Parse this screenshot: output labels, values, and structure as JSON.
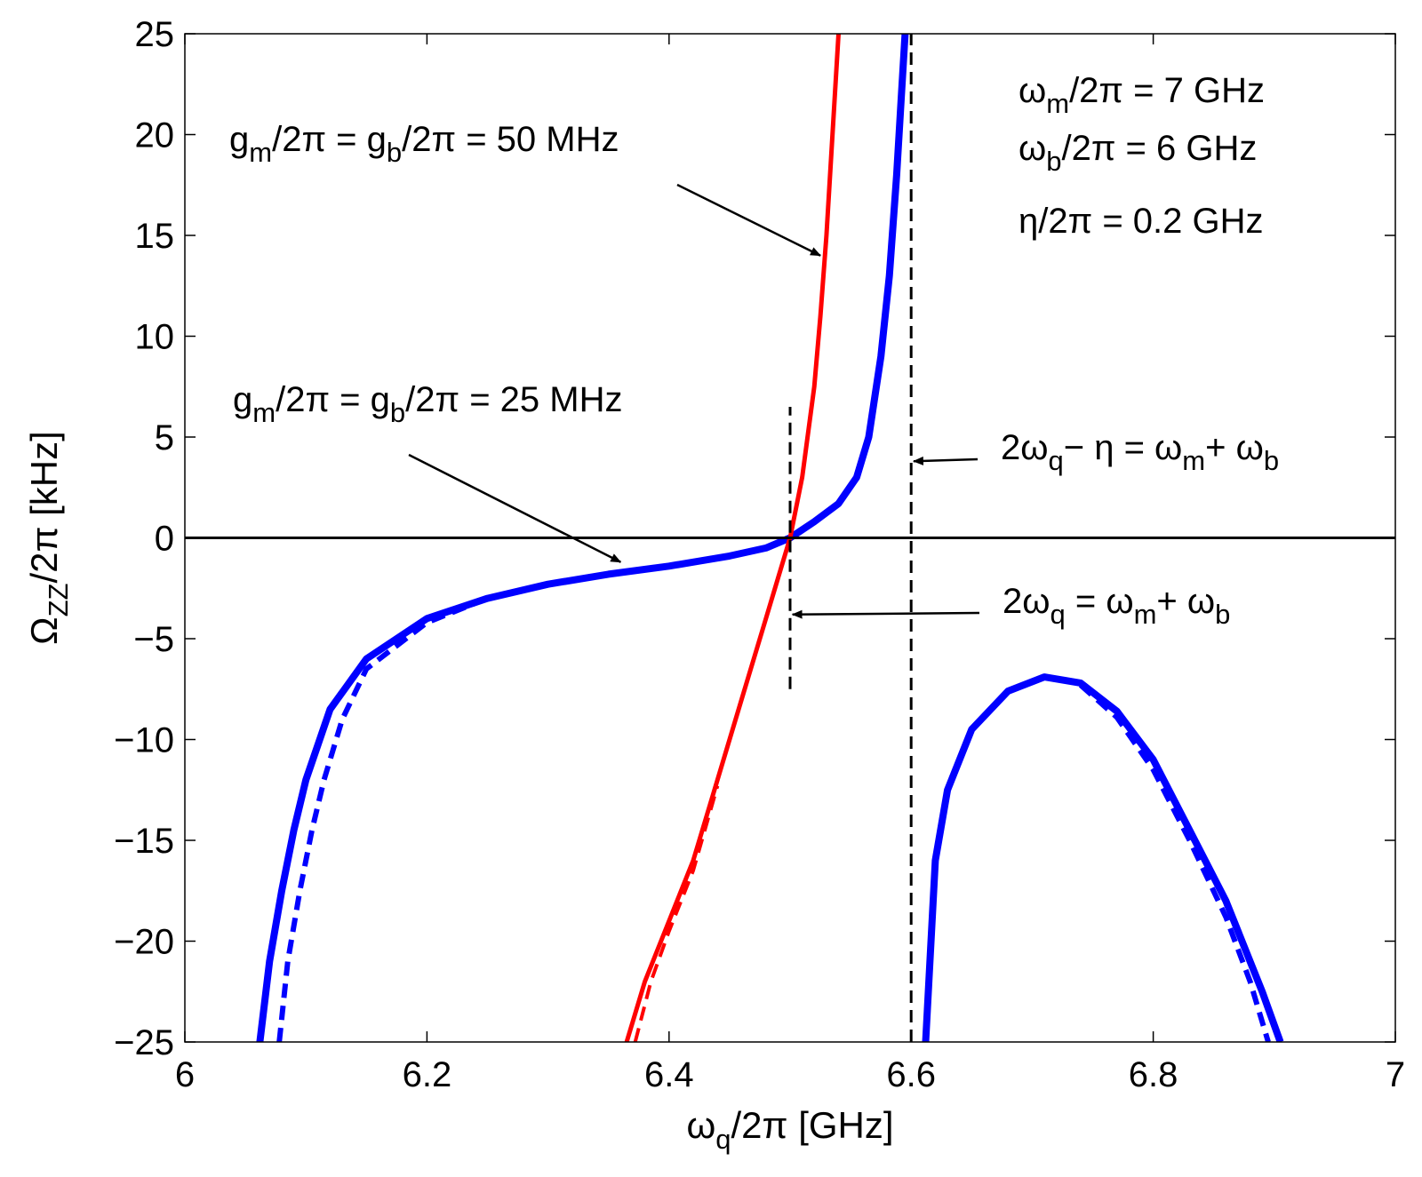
{
  "chart_data": {
    "type": "line",
    "title": "",
    "xlabel": {
      "sym": "ω",
      "sub": "q",
      "rest": "/2π [GHz]"
    },
    "ylabel": {
      "sym": "Ω",
      "sub": "ZZ",
      "rest": "/2π [kHz]"
    },
    "xlim": [
      6,
      7
    ],
    "ylim": [
      -25,
      25
    ],
    "xticks": [
      6,
      6.2,
      6.4,
      6.6,
      6.8,
      7
    ],
    "xtick_labels": [
      "6",
      "6.2",
      "6.4",
      "6.6",
      "6.8",
      "7"
    ],
    "yticks": [
      -25,
      -20,
      -15,
      -10,
      -5,
      0,
      5,
      10,
      15,
      20,
      25
    ],
    "ytick_labels": [
      "−25",
      "−20",
      "−15",
      "−10",
      "−5",
      "0",
      "5",
      "10",
      "15",
      "20",
      "25"
    ],
    "grid": false,
    "series": [
      {
        "name": "g = 25 MHz (solid, blue)",
        "color": "#0000ff",
        "style": "solid",
        "segments": [
          [
            [
              6.062,
              -25
            ],
            [
              6.07,
              -21
            ],
            [
              6.08,
              -17.5
            ],
            [
              6.09,
              -14.5
            ],
            [
              6.1,
              -12
            ],
            [
              6.12,
              -8.5
            ],
            [
              6.15,
              -6
            ],
            [
              6.2,
              -4
            ],
            [
              6.25,
              -3
            ],
            [
              6.3,
              -2.3
            ],
            [
              6.35,
              -1.8
            ],
            [
              6.4,
              -1.4
            ],
            [
              6.45,
              -0.9
            ],
            [
              6.48,
              -0.5
            ],
            [
              6.5,
              0
            ],
            [
              6.52,
              0.8
            ],
            [
              6.54,
              1.7
            ],
            [
              6.555,
              3
            ],
            [
              6.565,
              5
            ],
            [
              6.575,
              9
            ],
            [
              6.582,
              13
            ],
            [
              6.588,
              18
            ],
            [
              6.592,
              22
            ],
            [
              6.595,
              25
            ]
          ],
          [
            [
              6.612,
              -25
            ],
            [
              6.62,
              -16
            ],
            [
              6.63,
              -12.5
            ],
            [
              6.65,
              -9.5
            ],
            [
              6.68,
              -7.6
            ],
            [
              6.71,
              -6.9
            ],
            [
              6.74,
              -7.2
            ],
            [
              6.77,
              -8.6
            ],
            [
              6.8,
              -11
            ],
            [
              6.83,
              -14.5
            ],
            [
              6.86,
              -18
            ],
            [
              6.89,
              -22.5
            ],
            [
              6.905,
              -25
            ]
          ]
        ]
      },
      {
        "name": "g = 25 MHz (dashed, blue)",
        "color": "#0000ff",
        "style": "dashed",
        "segments": [
          [
            [
              6.078,
              -25
            ],
            [
              6.085,
              -21
            ],
            [
              6.095,
              -17.5
            ],
            [
              6.105,
              -14.5
            ],
            [
              6.115,
              -12
            ],
            [
              6.13,
              -9
            ],
            [
              6.15,
              -6.5
            ],
            [
              6.2,
              -4.2
            ],
            [
              6.25,
              -3
            ],
            [
              6.3,
              -2.3
            ],
            [
              6.35,
              -1.8
            ],
            [
              6.4,
              -1.4
            ],
            [
              6.45,
              -0.9
            ],
            [
              6.48,
              -0.5
            ],
            [
              6.5,
              0
            ]
          ],
          [
            [
              6.74,
              -7.3
            ],
            [
              6.77,
              -8.9
            ],
            [
              6.8,
              -11.5
            ],
            [
              6.83,
              -15
            ],
            [
              6.86,
              -18.8
            ],
            [
              6.88,
              -22
            ],
            [
              6.895,
              -25
            ]
          ]
        ]
      },
      {
        "name": "g = 50 MHz (solid, red)",
        "color": "#ff0000",
        "style": "solid",
        "segments": [
          [
            [
              6.365,
              -25
            ],
            [
              6.38,
              -22
            ],
            [
              6.4,
              -19
            ],
            [
              6.42,
              -16
            ],
            [
              6.44,
              -12
            ],
            [
              6.46,
              -8
            ],
            [
              6.48,
              -4
            ],
            [
              6.49,
              -2
            ],
            [
              6.5,
              0
            ],
            [
              6.51,
              3
            ],
            [
              6.52,
              7.5
            ],
            [
              6.525,
              11
            ],
            [
              6.53,
              15
            ],
            [
              6.535,
              20
            ],
            [
              6.54,
              25
            ]
          ]
        ]
      },
      {
        "name": "g = 50 MHz (dashed, red)",
        "color": "#ff0000",
        "style": "dashed",
        "segments": [
          [
            [
              6.372,
              -25
            ],
            [
              6.385,
              -22
            ],
            [
              6.4,
              -19.5
            ],
            [
              6.42,
              -16.5
            ],
            [
              6.44,
              -12.3
            ]
          ]
        ]
      },
      {
        "name": "reference 2ωq = ωm + ωb",
        "color": "#000000",
        "style": "dashed-vertical",
        "segments": [
          [
            [
              6.5,
              -7.5
            ],
            [
              6.5,
              6.5
            ]
          ]
        ]
      },
      {
        "name": "reference 2ωq − η = ωm + ωb",
        "color": "#000000",
        "style": "dashed-vertical",
        "segments": [
          [
            [
              6.6,
              -25
            ],
            [
              6.6,
              25
            ]
          ]
        ]
      },
      {
        "name": "zero line",
        "color": "#000000",
        "style": "solid-thin",
        "segments": [
          [
            [
              6.0,
              0
            ],
            [
              7.0,
              0
            ]
          ]
        ]
      }
    ],
    "annotations": [
      {
        "id": "g50",
        "parts": [
          [
            "g",
            ""
          ],
          [
            "m",
            "sub"
          ],
          [
            "/2π = g",
            ""
          ],
          [
            "b",
            "sub"
          ],
          [
            "/2π = 50 MHz",
            ""
          ]
        ],
        "arrow_to": [
          6.525,
          14
        ]
      },
      {
        "id": "g25",
        "parts": [
          [
            "g",
            ""
          ],
          [
            "m",
            "sub"
          ],
          [
            "/2π = g",
            ""
          ],
          [
            "b",
            "sub"
          ],
          [
            "/2π = 25 MHz",
            ""
          ]
        ],
        "arrow_to": [
          6.36,
          -1.2
        ]
      },
      {
        "id": "res1",
        "parts": [
          [
            "2ω",
            ""
          ],
          [
            "q",
            "sub"
          ],
          [
            "− η = ω",
            ""
          ],
          [
            "m",
            "sub"
          ],
          [
            "+ ω",
            ""
          ],
          [
            "b",
            "sub"
          ]
        ],
        "arrow_to": [
          6.602,
          3.8
        ]
      },
      {
        "id": "res2",
        "parts": [
          [
            "2ω",
            ""
          ],
          [
            "q",
            "sub"
          ],
          [
            " = ω",
            ""
          ],
          [
            "m",
            "sub"
          ],
          [
            "+ ω",
            ""
          ],
          [
            "b",
            "sub"
          ]
        ],
        "arrow_to": [
          6.502,
          -3.8
        ]
      },
      {
        "id": "p1",
        "parts": [
          [
            "ω",
            ""
          ],
          [
            "m",
            "sub"
          ],
          [
            "/2π = 7 GHz",
            ""
          ]
        ]
      },
      {
        "id": "p2",
        "parts": [
          [
            "ω",
            ""
          ],
          [
            "b",
            "sub"
          ],
          [
            "/2π = 6 GHz",
            ""
          ]
        ]
      },
      {
        "id": "p3",
        "parts": [
          [
            "η/2π = 0.2 GHz",
            ""
          ]
        ]
      }
    ]
  }
}
